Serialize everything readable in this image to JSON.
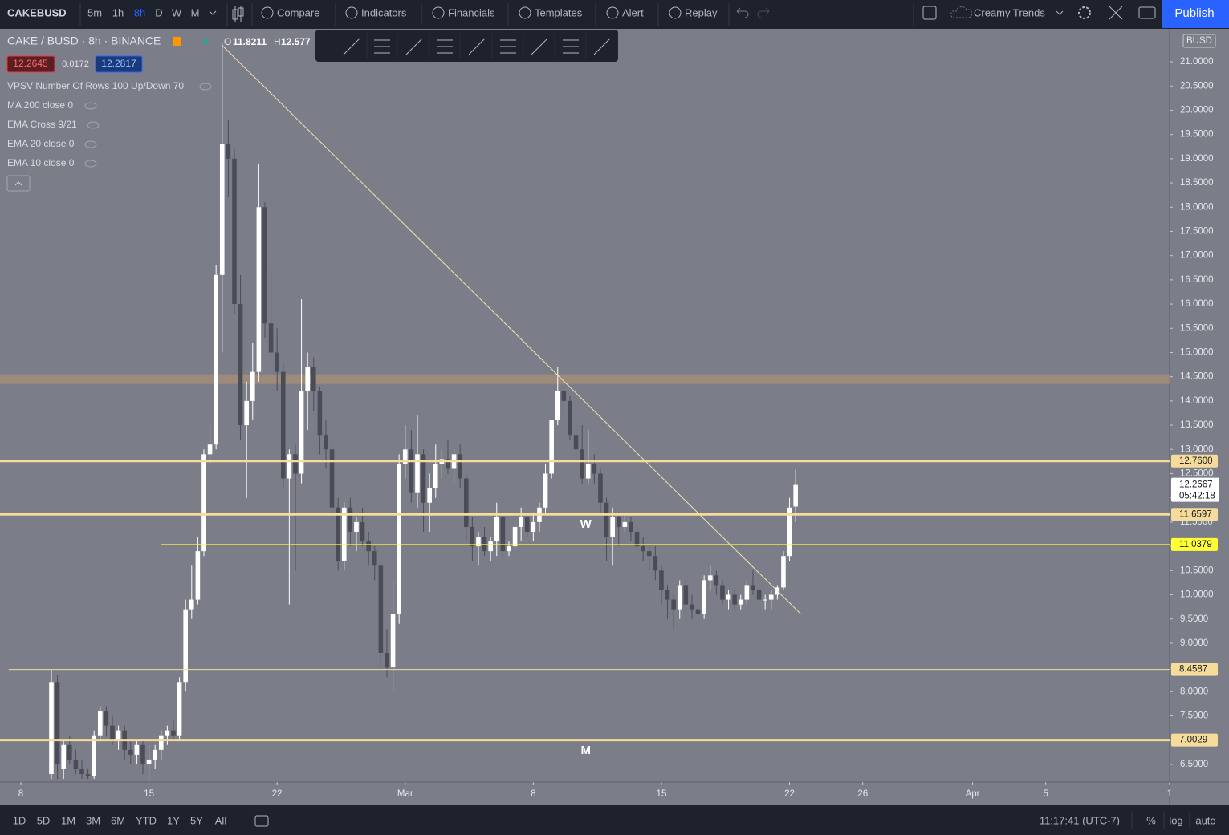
{
  "toolbar": {
    "symbol": "CAKEBUSD",
    "intervals": [
      "5m",
      "1h",
      "8h",
      "D",
      "W",
      "M"
    ],
    "active_interval": 2,
    "buttons": [
      "Compare",
      "Indicators",
      "Financials",
      "Templates",
      "Alert",
      "Replay"
    ],
    "layout_name": "Creamy Trends",
    "publish": "Publish"
  },
  "legend": {
    "title": "CAKE / BUSD · 8h · BINANCE",
    "open_label": "O",
    "open": "11.8211",
    "high_label": "H",
    "high": "12.577",
    "boxes": [
      "12.2645",
      "0.0172",
      "12.2817"
    ],
    "indicators": [
      "VPSV Number Of Rows 100 Up/Down 70",
      "MA 200 close 0",
      "EMA Cross 9/21",
      "EMA 20 close 0",
      "EMA 10 close 0"
    ]
  },
  "bottom_bar": {
    "ranges": [
      "1D",
      "5D",
      "1M",
      "3M",
      "6M",
      "YTD",
      "1Y",
      "5Y",
      "All"
    ],
    "clock": "11:17:41 (UTC-7)",
    "options": [
      "%",
      "log",
      "auto"
    ]
  },
  "chart_data": {
    "type": "candlestick",
    "currency": "BUSD",
    "countdown": "05:42:18",
    "up_color": "#ffffff",
    "down_color": "#4a4d58",
    "background": "#7b7e88",
    "xlim": [
      -3.42,
      188.3
    ],
    "ylim": [
      6.135,
      21.679
    ],
    "xticks": [
      {
        "value": 0,
        "label": "8"
      },
      {
        "value": 21,
        "label": "15"
      },
      {
        "value": 42,
        "label": "22"
      },
      {
        "value": 63,
        "label": "Mar"
      },
      {
        "value": 84,
        "label": "8"
      },
      {
        "value": 105,
        "label": "15"
      },
      {
        "value": 126,
        "label": "22"
      },
      {
        "value": 138,
        "label": "26"
      },
      {
        "value": 156,
        "label": "Apr"
      },
      {
        "value": 168,
        "label": "5"
      },
      {
        "value": 188.3,
        "label": "1"
      }
    ],
    "yticks": [
      {
        "value": 6.5,
        "label": "6.5000"
      },
      {
        "value": 7,
        "label": "7.0000"
      },
      {
        "value": 7.5,
        "label": "7.5000"
      },
      {
        "value": 8,
        "label": "8.0000"
      },
      {
        "value": 8.5,
        "label": "8.5000"
      },
      {
        "value": 9,
        "label": "9.0000"
      },
      {
        "value": 9.5,
        "label": "9.5000"
      },
      {
        "value": 10,
        "label": "10.0000"
      },
      {
        "value": 10.5,
        "label": "10.5000"
      },
      {
        "value": 11,
        "label": "11.0000"
      },
      {
        "value": 11.5,
        "label": "11.5000"
      },
      {
        "value": 12,
        "label": "12.0000"
      },
      {
        "value": 12.5,
        "label": "12.5000"
      },
      {
        "value": 13,
        "label": "13.0000"
      },
      {
        "value": 13.5,
        "label": "13.5000"
      },
      {
        "value": 14,
        "label": "14.0000"
      },
      {
        "value": 14.5,
        "label": "14.5000"
      },
      {
        "value": 15,
        "label": "15.0000"
      },
      {
        "value": 15.5,
        "label": "15.5000"
      },
      {
        "value": 16,
        "label": "16.0000"
      },
      {
        "value": 16.5,
        "label": "16.5000"
      },
      {
        "value": 17,
        "label": "17.0000"
      },
      {
        "value": 17.5,
        "label": "17.5000"
      },
      {
        "value": 18,
        "label": "18.0000"
      },
      {
        "value": 18.5,
        "label": "18.5000"
      },
      {
        "value": 19,
        "label": "19.0000"
      },
      {
        "value": 19.5,
        "label": "19.5000"
      },
      {
        "value": 20,
        "label": "20.0000"
      },
      {
        "value": 20.5,
        "label": "20.5000"
      },
      {
        "value": 21,
        "label": "21.0000"
      }
    ],
    "x": [
      5,
      6,
      7,
      8,
      9,
      10,
      11,
      12,
      13,
      14,
      15,
      16,
      17,
      18,
      19,
      20,
      21,
      22,
      23,
      24,
      25,
      26,
      27,
      28,
      29,
      30,
      31,
      32,
      33,
      34,
      35,
      36,
      37,
      38,
      39,
      40,
      41,
      42,
      43,
      44,
      45,
      46,
      47,
      48,
      49,
      50,
      51,
      52,
      53,
      54,
      55,
      56,
      57,
      58,
      59,
      60,
      61,
      62,
      63,
      64,
      65,
      66,
      67,
      68,
      69,
      70,
      71,
      72,
      73,
      74,
      75,
      76,
      77,
      78,
      79,
      80,
      81,
      82,
      83,
      84,
      85,
      86,
      87,
      88,
      89,
      90,
      91,
      92,
      93,
      94,
      95,
      96,
      97,
      98,
      99,
      100,
      101,
      102,
      103,
      104,
      105,
      106,
      107,
      108,
      109,
      110,
      111,
      112,
      113,
      114,
      115,
      116,
      117,
      118,
      119,
      120,
      121,
      122,
      123,
      124,
      125,
      126,
      127
    ],
    "ohlc": [
      [
        6.3,
        8.45,
        6.2,
        8.2
      ],
      [
        8.2,
        8.35,
        6.2,
        6.5
      ],
      [
        6.4,
        7.0,
        6.2,
        6.9
      ],
      [
        6.9,
        7.1,
        6.5,
        6.6
      ],
      [
        6.6,
        6.8,
        6.3,
        6.4
      ],
      [
        6.4,
        6.6,
        6.2,
        6.3
      ],
      [
        6.3,
        6.4,
        6.2,
        6.25
      ],
      [
        6.25,
        7.2,
        6.2,
        7.1
      ],
      [
        7.1,
        7.7,
        7.0,
        7.6
      ],
      [
        7.6,
        7.7,
        7.1,
        7.3
      ],
      [
        7.3,
        7.5,
        6.9,
        7.0
      ],
      [
        7.0,
        7.3,
        6.8,
        7.2
      ],
      [
        7.2,
        7.3,
        6.6,
        6.8
      ],
      [
        6.8,
        7.0,
        6.5,
        6.7
      ],
      [
        6.7,
        7.0,
        6.5,
        6.9
      ],
      [
        6.9,
        7.0,
        6.3,
        6.5
      ],
      [
        6.5,
        6.9,
        6.2,
        6.6
      ],
      [
        6.6,
        6.9,
        6.4,
        6.8
      ],
      [
        6.8,
        7.2,
        6.6,
        7.1
      ],
      [
        7.1,
        7.3,
        6.9,
        7.2
      ],
      [
        7.2,
        7.4,
        7.0,
        7.1
      ],
      [
        7.1,
        8.3,
        7.0,
        8.2
      ],
      [
        8.2,
        9.9,
        8.0,
        9.7
      ],
      [
        9.7,
        10.6,
        9.5,
        9.9
      ],
      [
        9.9,
        11.2,
        9.8,
        10.9
      ],
      [
        10.9,
        13.0,
        10.8,
        12.9
      ],
      [
        12.9,
        13.5,
        12.7,
        13.1
      ],
      [
        13.1,
        16.8,
        13.0,
        16.6
      ],
      [
        16.6,
        21.4,
        15.0,
        19.3
      ],
      [
        19.3,
        19.8,
        18.2,
        19.0
      ],
      [
        19.0,
        19.2,
        15.8,
        16.0
      ],
      [
        16.0,
        16.6,
        13.2,
        13.5
      ],
      [
        13.5,
        14.4,
        12.0,
        14.0
      ],
      [
        14.0,
        15.2,
        13.6,
        14.6
      ],
      [
        14.6,
        18.9,
        14.4,
        18.0
      ],
      [
        18.0,
        18.1,
        15.3,
        15.6
      ],
      [
        15.6,
        16.8,
        14.8,
        15.0
      ],
      [
        15.0,
        15.5,
        14.2,
        14.6
      ],
      [
        14.6,
        14.8,
        12.2,
        12.4
      ],
      [
        12.4,
        13.0,
        9.8,
        12.9
      ],
      [
        12.9,
        13.1,
        10.5,
        12.5
      ],
      [
        12.5,
        16.1,
        12.3,
        14.2
      ],
      [
        14.2,
        15.0,
        13.4,
        14.7
      ],
      [
        14.7,
        14.9,
        13.8,
        14.2
      ],
      [
        14.2,
        14.3,
        12.9,
        13.3
      ],
      [
        13.3,
        13.6,
        12.6,
        13.0
      ],
      [
        13.0,
        13.2,
        11.5,
        11.8
      ],
      [
        11.8,
        12.0,
        10.5,
        10.7
      ],
      [
        10.7,
        11.9,
        10.5,
        11.8
      ],
      [
        11.8,
        12.0,
        11.0,
        11.3
      ],
      [
        11.3,
        11.6,
        10.9,
        11.5
      ],
      [
        11.5,
        11.8,
        11.0,
        11.1
      ],
      [
        11.1,
        11.3,
        10.6,
        10.9
      ],
      [
        10.9,
        11.0,
        10.3,
        10.6
      ],
      [
        10.6,
        10.7,
        8.5,
        8.8
      ],
      [
        8.8,
        9.3,
        8.3,
        8.5
      ],
      [
        8.5,
        10.3,
        8.0,
        9.6
      ],
      [
        9.6,
        12.9,
        9.4,
        12.7
      ],
      [
        12.7,
        13.5,
        12.4,
        13.0
      ],
      [
        13.0,
        13.4,
        11.9,
        12.1
      ],
      [
        12.1,
        13.7,
        11.8,
        12.9
      ],
      [
        12.9,
        13.0,
        11.3,
        11.9
      ],
      [
        11.9,
        12.5,
        11.3,
        12.2
      ],
      [
        12.2,
        13.1,
        12.0,
        12.7
      ],
      [
        12.7,
        13.0,
        12.4,
        12.8
      ],
      [
        12.8,
        13.2,
        12.5,
        12.6
      ],
      [
        12.6,
        13.0,
        12.3,
        12.9
      ],
      [
        12.9,
        13.1,
        12.2,
        12.4
      ],
      [
        12.4,
        12.5,
        11.1,
        11.4
      ],
      [
        11.4,
        11.6,
        10.7,
        11.0
      ],
      [
        11.0,
        11.3,
        10.6,
        11.2
      ],
      [
        11.2,
        11.4,
        10.8,
        10.9
      ],
      [
        10.9,
        11.2,
        10.7,
        11.1
      ],
      [
        11.1,
        11.9,
        10.8,
        11.6
      ],
      [
        11.6,
        11.7,
        10.8,
        10.9
      ],
      [
        10.9,
        11.1,
        10.8,
        11.0
      ],
      [
        11.0,
        11.5,
        10.9,
        11.4
      ],
      [
        11.4,
        11.8,
        11.1,
        11.6
      ],
      [
        11.6,
        11.7,
        11.2,
        11.3
      ],
      [
        11.3,
        11.7,
        11.1,
        11.5
      ],
      [
        11.5,
        11.9,
        11.3,
        11.8
      ],
      [
        11.8,
        12.7,
        11.7,
        12.5
      ],
      [
        12.5,
        13.6,
        12.4,
        13.6
      ],
      [
        13.6,
        14.7,
        13.5,
        14.2
      ],
      [
        14.2,
        14.3,
        13.7,
        14.0
      ],
      [
        14.0,
        14.1,
        13.2,
        13.3
      ],
      [
        13.3,
        13.5,
        12.7,
        13.0
      ],
      [
        13.0,
        13.5,
        12.3,
        12.4
      ],
      [
        12.4,
        13.4,
        12.3,
        12.7
      ],
      [
        12.7,
        12.9,
        12.3,
        12.5
      ],
      [
        12.5,
        12.6,
        11.7,
        11.9
      ],
      [
        11.9,
        12.0,
        10.7,
        11.2
      ],
      [
        11.2,
        11.8,
        10.6,
        11.6
      ],
      [
        11.6,
        11.7,
        11.0,
        11.4
      ],
      [
        11.4,
        11.7,
        11.3,
        11.5
      ],
      [
        11.5,
        11.6,
        11.1,
        11.3
      ],
      [
        11.3,
        11.4,
        10.9,
        11.0
      ],
      [
        11.0,
        11.2,
        10.7,
        10.9
      ],
      [
        10.9,
        11.0,
        10.5,
        10.8
      ],
      [
        10.8,
        11.0,
        10.3,
        10.5
      ],
      [
        10.5,
        10.6,
        9.8,
        10.1
      ],
      [
        10.1,
        10.2,
        9.5,
        9.9
      ],
      [
        9.9,
        10.0,
        9.3,
        9.7
      ],
      [
        9.7,
        10.3,
        9.5,
        10.2
      ],
      [
        10.2,
        10.3,
        9.6,
        9.8
      ],
      [
        9.8,
        10.0,
        9.5,
        9.7
      ],
      [
        9.7,
        9.8,
        9.4,
        9.6
      ],
      [
        9.6,
        10.4,
        9.5,
        10.3
      ],
      [
        10.3,
        10.6,
        10.1,
        10.4
      ],
      [
        10.4,
        10.5,
        10.0,
        10.2
      ],
      [
        10.2,
        10.3,
        9.8,
        9.9
      ],
      [
        9.9,
        10.1,
        9.7,
        10.0
      ],
      [
        10.0,
        10.1,
        9.7,
        9.8
      ],
      [
        9.8,
        10.0,
        9.7,
        9.9
      ],
      [
        9.9,
        10.3,
        9.8,
        10.2
      ],
      [
        10.2,
        10.5,
        10.0,
        10.1
      ],
      [
        10.1,
        10.3,
        9.8,
        9.9
      ],
      [
        9.9,
        10.0,
        9.7,
        9.9
      ],
      [
        9.9,
        10.1,
        9.7,
        10.0
      ],
      [
        10.0,
        10.2,
        9.9,
        10.15
      ],
      [
        10.15,
        10.9,
        10.1,
        10.8
      ],
      [
        10.8,
        12.0,
        10.7,
        11.8
      ],
      [
        11.8211,
        12.58,
        11.5,
        12.2667
      ]
    ],
    "levels": [
      {
        "value": 12.76,
        "label": "12.7600",
        "color": "#f6dc9a",
        "width": 3
      },
      {
        "value": 11.6597,
        "label": "11.6597",
        "color": "#f6dc9a",
        "width": 3
      },
      {
        "value": 11.0379,
        "label": "11.0379",
        "color": "#ffff33",
        "width": 1,
        "from": 23
      },
      {
        "value": 8.4587,
        "label": "8.4587",
        "color": "#f6dc9a",
        "width": 1,
        "from": -2
      },
      {
        "value": 7.0029,
        "label": "7.0029",
        "color": "#f6dc9a",
        "width": 3
      }
    ],
    "zone": [
      14.35,
      14.55
    ],
    "trendline": {
      "x": [
        32.9,
        127.8
      ],
      "y": [
        21.35,
        9.61
      ],
      "color": "#f3e2b0"
    },
    "annotations": [
      {
        "text": "W",
        "x": 92.6,
        "y": 11.45
      },
      {
        "text": "M",
        "x": 92.6,
        "y": 6.78
      }
    ]
  }
}
